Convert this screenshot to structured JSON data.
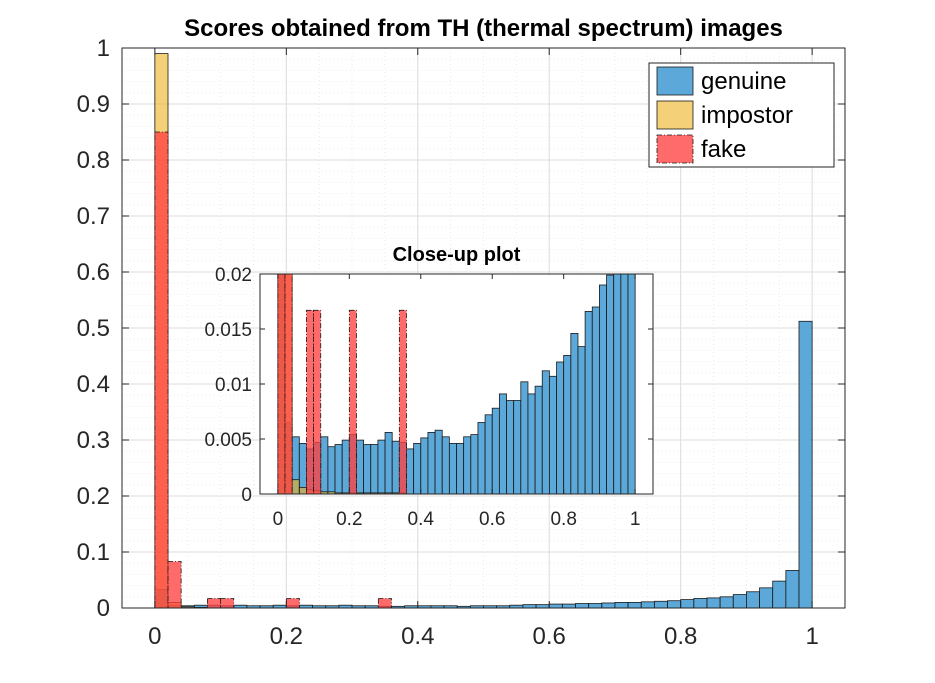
{
  "chart_data": [
    {
      "type": "bar",
      "role": "main",
      "title": "Scores obtained from TH (thermal spectrum) images",
      "xlabel": "",
      "ylabel": "",
      "xlim": [
        -0.05,
        1.05
      ],
      "ylim": [
        0,
        1
      ],
      "bin_width": 0.02,
      "x_ticks": [
        0,
        0.2,
        0.4,
        0.6,
        0.8,
        1
      ],
      "x_tick_labels": [
        "0",
        "0.2",
        "0.4",
        "0.6",
        "0.8",
        "1"
      ],
      "y_ticks": [
        0,
        0.1,
        0.2,
        0.3,
        0.4,
        0.5,
        0.6,
        0.7,
        0.8,
        0.9,
        1
      ],
      "y_tick_labels": [
        "0",
        "0.1",
        "0.2",
        "0.3",
        "0.4",
        "0.5",
        "0.6",
        "0.7",
        "0.8",
        "0.9",
        "1"
      ],
      "grid": true,
      "legend_position": "top-right",
      "series": [
        {
          "name": "genuine",
          "color": "#4a9fd4",
          "bins": [
            [
              0.0,
              0.033
            ],
            [
              0.02,
              0.005
            ],
            [
              0.04,
              0.004
            ],
            [
              0.06,
              0.005
            ],
            [
              0.08,
              0.005
            ],
            [
              0.1,
              0.004
            ],
            [
              0.12,
              0.005
            ],
            [
              0.14,
              0.004
            ],
            [
              0.16,
              0.004
            ],
            [
              0.18,
              0.005
            ],
            [
              0.2,
              0.004
            ],
            [
              0.22,
              0.005
            ],
            [
              0.24,
              0.004
            ],
            [
              0.26,
              0.004
            ],
            [
              0.28,
              0.005
            ],
            [
              0.3,
              0.004
            ],
            [
              0.32,
              0.004
            ],
            [
              0.34,
              0.003
            ],
            [
              0.36,
              0.003
            ],
            [
              0.38,
              0.004
            ],
            [
              0.4,
              0.004
            ],
            [
              0.42,
              0.004
            ],
            [
              0.44,
              0.004
            ],
            [
              0.46,
              0.003
            ],
            [
              0.48,
              0.004
            ],
            [
              0.5,
              0.004
            ],
            [
              0.52,
              0.004
            ],
            [
              0.54,
              0.005
            ],
            [
              0.56,
              0.006
            ],
            [
              0.58,
              0.006
            ],
            [
              0.6,
              0.007
            ],
            [
              0.62,
              0.007
            ],
            [
              0.64,
              0.008
            ],
            [
              0.66,
              0.008
            ],
            [
              0.68,
              0.009
            ],
            [
              0.7,
              0.01
            ],
            [
              0.72,
              0.01
            ],
            [
              0.74,
              0.011
            ],
            [
              0.76,
              0.012
            ],
            [
              0.78,
              0.013
            ],
            [
              0.8,
              0.015
            ],
            [
              0.82,
              0.017
            ],
            [
              0.84,
              0.018
            ],
            [
              0.86,
              0.02
            ],
            [
              0.88,
              0.024
            ],
            [
              0.9,
              0.029
            ],
            [
              0.92,
              0.036
            ],
            [
              0.94,
              0.048
            ],
            [
              0.96,
              0.067
            ],
            [
              0.98,
              0.512
            ]
          ]
        },
        {
          "name": "impostor",
          "color": "#edb120",
          "bins": [
            [
              0.0,
              0.99
            ],
            [
              0.02,
              0.01
            ],
            [
              0.04,
              0.002
            ],
            [
              0.06,
              0.001
            ]
          ]
        },
        {
          "name": "fake",
          "color": "#ff4040",
          "bins": [
            [
              0.0,
              0.85
            ],
            [
              0.02,
              0.083
            ],
            [
              0.08,
              0.017
            ],
            [
              0.1,
              0.017
            ],
            [
              0.2,
              0.017
            ],
            [
              0.34,
              0.017
            ]
          ]
        }
      ]
    },
    {
      "type": "bar",
      "role": "inset",
      "title": "Close-up plot",
      "xlabel": "",
      "ylabel": "",
      "xlim": [
        -0.05,
        1.05
      ],
      "ylim": [
        0,
        0.02
      ],
      "bin_width": 0.02,
      "x_ticks": [
        0,
        0.2,
        0.4,
        0.6,
        0.8,
        1
      ],
      "x_tick_labels": [
        "0",
        "0.2",
        "0.4",
        "0.6",
        "0.8",
        "1"
      ],
      "y_ticks": [
        0,
        0.005,
        0.01,
        0.015,
        0.02
      ],
      "y_tick_labels": [
        "0",
        "0.005",
        "0.01",
        "0.015",
        "0.02"
      ],
      "grid": false,
      "series": [
        {
          "name": "genuine",
          "color": "#4a9fd4",
          "bins": [
            [
              0.0,
              0.02
            ],
            [
              0.02,
              0.0065
            ],
            [
              0.04,
              0.0052
            ],
            [
              0.06,
              0.0046
            ],
            [
              0.08,
              0.0041
            ],
            [
              0.1,
              0.0047
            ],
            [
              0.12,
              0.0052
            ],
            [
              0.14,
              0.0043
            ],
            [
              0.16,
              0.0045
            ],
            [
              0.18,
              0.0049
            ],
            [
              0.2,
              0.0054
            ],
            [
              0.22,
              0.0049
            ],
            [
              0.24,
              0.0045
            ],
            [
              0.26,
              0.0045
            ],
            [
              0.28,
              0.0049
            ],
            [
              0.3,
              0.0056
            ],
            [
              0.32,
              0.0048
            ],
            [
              0.34,
              0.0047
            ],
            [
              0.36,
              0.0041
            ],
            [
              0.38,
              0.0046
            ],
            [
              0.4,
              0.0051
            ],
            [
              0.42,
              0.0056
            ],
            [
              0.44,
              0.0058
            ],
            [
              0.46,
              0.0052
            ],
            [
              0.48,
              0.0046
            ],
            [
              0.5,
              0.0046
            ],
            [
              0.52,
              0.0052
            ],
            [
              0.54,
              0.0054
            ],
            [
              0.56,
              0.0065
            ],
            [
              0.58,
              0.0072
            ],
            [
              0.6,
              0.0078
            ],
            [
              0.62,
              0.0091
            ],
            [
              0.64,
              0.0085
            ],
            [
              0.66,
              0.0085
            ],
            [
              0.68,
              0.0102
            ],
            [
              0.7,
              0.0091
            ],
            [
              0.72,
              0.0098
            ],
            [
              0.74,
              0.0112
            ],
            [
              0.76,
              0.0107
            ],
            [
              0.78,
              0.012
            ],
            [
              0.8,
              0.0126
            ],
            [
              0.82,
              0.0146
            ],
            [
              0.84,
              0.0134
            ],
            [
              0.86,
              0.0166
            ],
            [
              0.88,
              0.017
            ],
            [
              0.9,
              0.019
            ],
            [
              0.92,
              0.0199
            ],
            [
              0.94,
              0.02
            ],
            [
              0.96,
              0.02
            ],
            [
              0.98,
              0.02
            ]
          ]
        },
        {
          "name": "impostor",
          "color": "#edb120",
          "bins": [
            [
              0.0,
              0.02
            ],
            [
              0.02,
              0.02
            ],
            [
              0.04,
              0.0013
            ],
            [
              0.06,
              0.0006
            ],
            [
              0.08,
              0.0004
            ],
            [
              0.1,
              0.0003
            ],
            [
              0.12,
              0.0002
            ],
            [
              0.14,
              0.0002
            ],
            [
              0.16,
              0.0001
            ],
            [
              0.18,
              0.0001
            ],
            [
              0.2,
              0.0001
            ],
            [
              0.22,
              0.0001
            ],
            [
              0.24,
              0.0001
            ],
            [
              0.26,
              0.0001
            ],
            [
              0.28,
              0.0001
            ],
            [
              0.3,
              0.0001
            ],
            [
              0.32,
              0.0001
            ],
            [
              0.34,
              0.0001
            ]
          ]
        },
        {
          "name": "fake",
          "color": "#ff4040",
          "bins": [
            [
              0.0,
              0.02
            ],
            [
              0.02,
              0.02
            ],
            [
              0.08,
              0.0167
            ],
            [
              0.1,
              0.0167
            ],
            [
              0.2,
              0.0167
            ],
            [
              0.34,
              0.0167
            ]
          ]
        }
      ]
    }
  ]
}
